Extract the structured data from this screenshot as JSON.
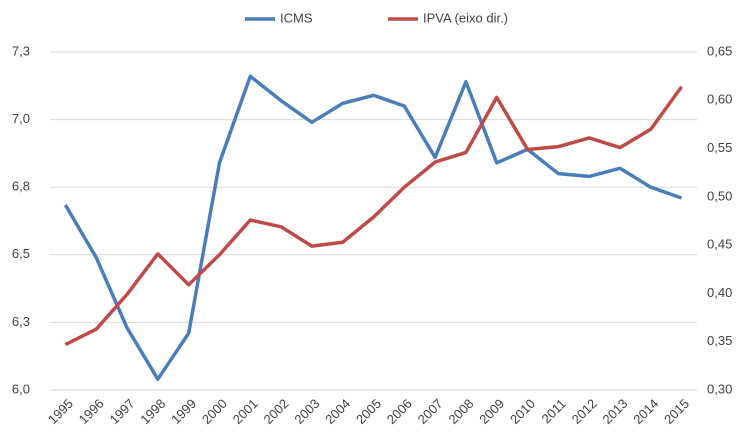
{
  "chart_data": {
    "type": "line",
    "categories": [
      "1995",
      "1996",
      "1997",
      "1998",
      "1999",
      "2000",
      "2001",
      "2002",
      "2003",
      "2004",
      "2005",
      "2006",
      "2007",
      "2008",
      "2009",
      "2010",
      "2011",
      "2012",
      "2013",
      "2014",
      "2015"
    ],
    "series": [
      {
        "name": "ICMS",
        "color": "#4a7ebb",
        "values": [
          6.684,
          6.49,
          6.23,
          6.04,
          6.21,
          6.84,
          7.16,
          7.07,
          6.99,
          7.06,
          7.09,
          7.05,
          6.86,
          7.14,
          6.84,
          6.89,
          6.8,
          6.79,
          6.82,
          6.75,
          6.71
        ]
      },
      {
        "name": "IPVA (eixo dir.)",
        "color": "#be4b48",
        "axis": "y2",
        "values": [
          0.347,
          0.363,
          0.399,
          0.441,
          0.409,
          0.44,
          0.476,
          0.469,
          0.449,
          0.453,
          0.479,
          0.51,
          0.536,
          0.546,
          0.603,
          0.549,
          0.552,
          0.561,
          0.551,
          0.57,
          0.614
        ]
      }
    ],
    "ylim": [
      6.0,
      7.25
    ],
    "yticks": [
      {
        "value": 6.0,
        "label": "6,0"
      },
      {
        "value": 6.25,
        "label": "6,3"
      },
      {
        "value": 6.5,
        "label": "6,5"
      },
      {
        "value": 6.75,
        "label": "6,8"
      },
      {
        "value": 7.0,
        "label": "7,0"
      },
      {
        "value": 7.25,
        "label": "7,3"
      }
    ],
    "y2lim": [
      0.3,
      0.65
    ],
    "y2ticks": [
      {
        "value": 0.3,
        "label": "0,30"
      },
      {
        "value": 0.35,
        "label": "0,35"
      },
      {
        "value": 0.4,
        "label": "0,40"
      },
      {
        "value": 0.45,
        "label": "0,45"
      },
      {
        "value": 0.5,
        "label": "0,50"
      },
      {
        "value": 0.55,
        "label": "0,55"
      },
      {
        "value": 0.6,
        "label": "0,60"
      },
      {
        "value": 0.65,
        "label": "0,65"
      }
    ],
    "grid": true,
    "legend": "top"
  }
}
